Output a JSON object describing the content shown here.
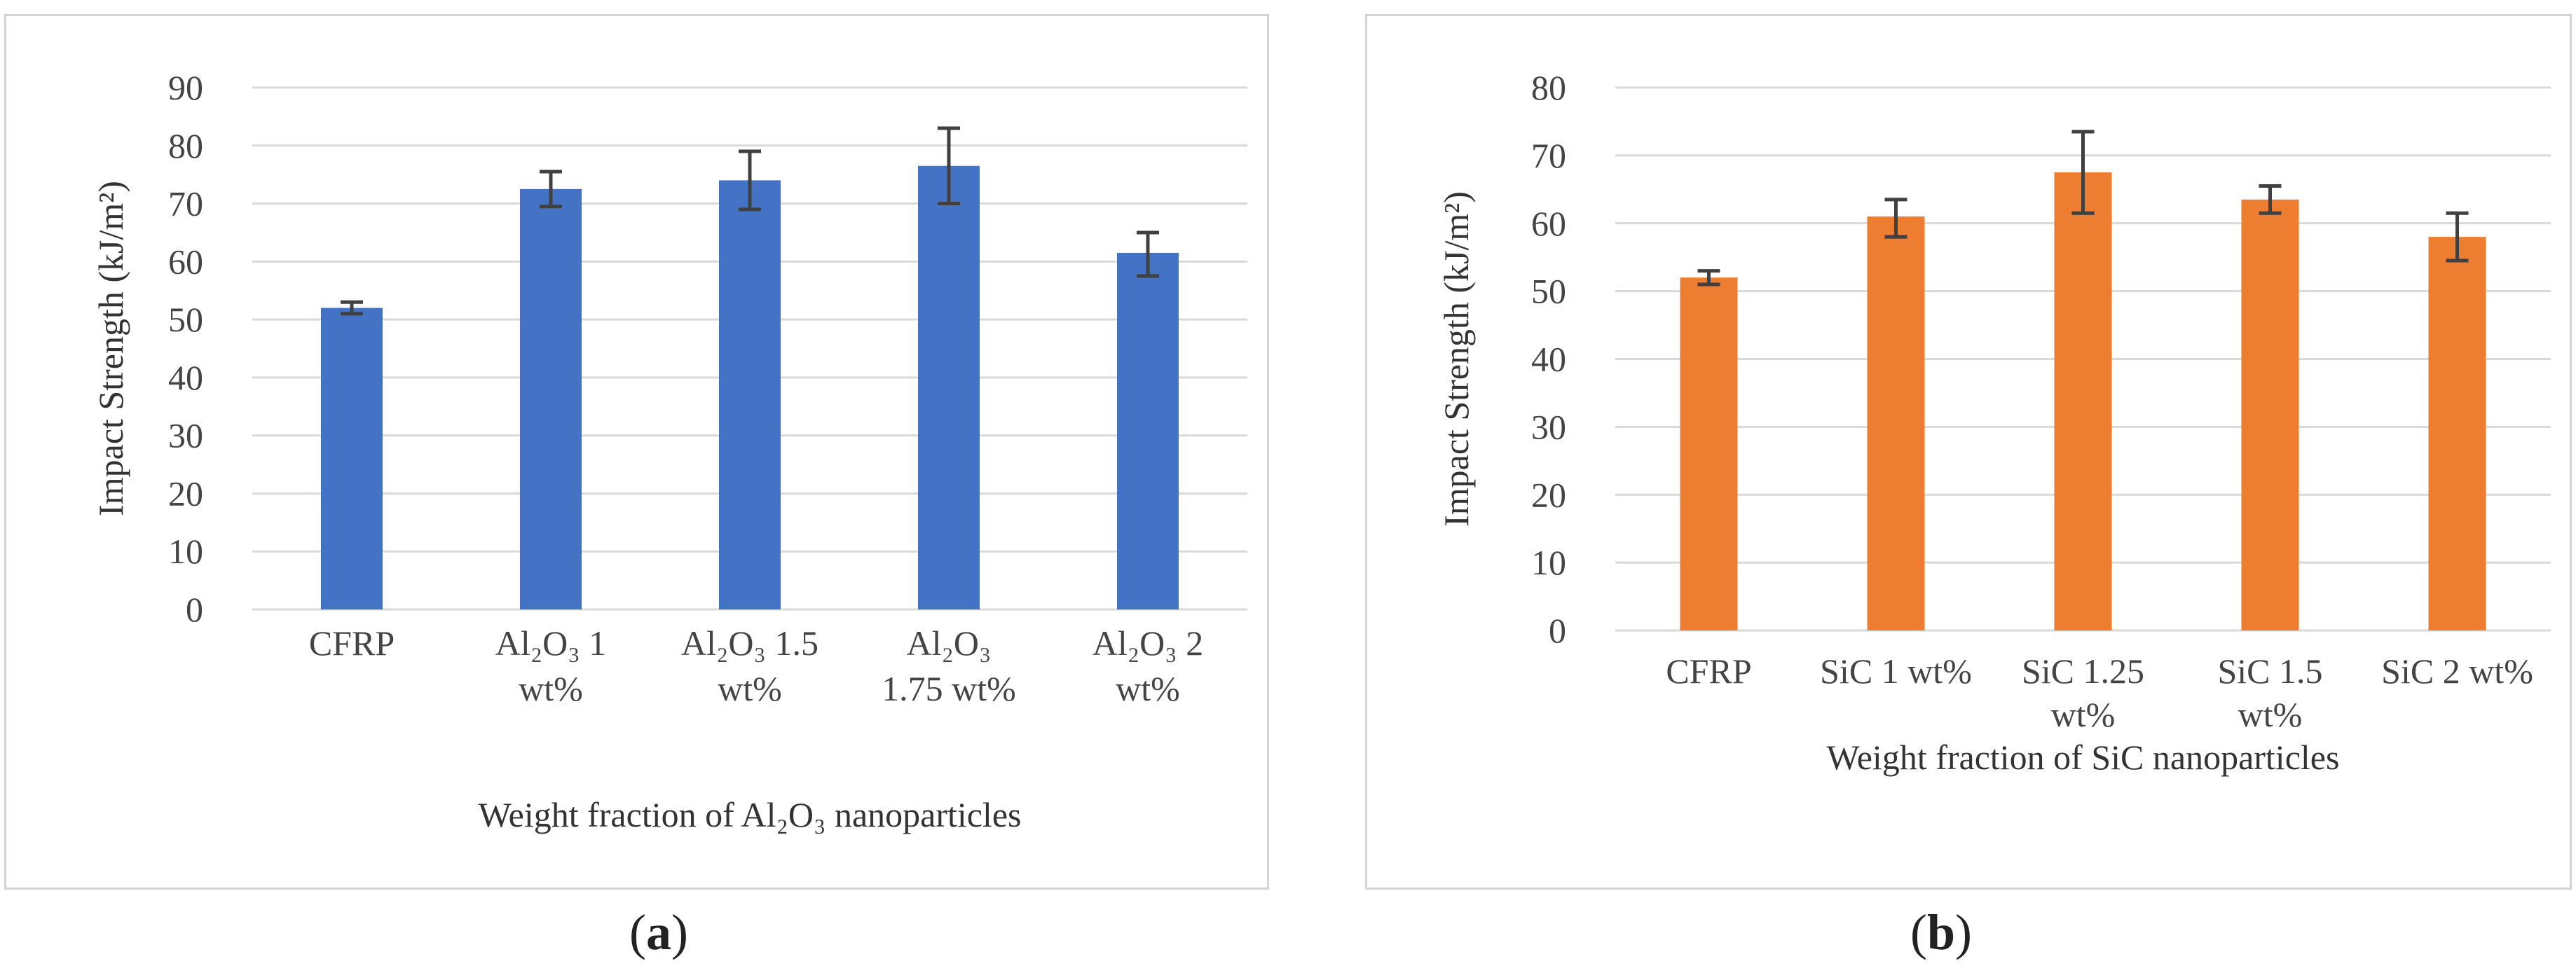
{
  "chart_data": [
    {
      "type": "bar",
      "panel_label": "a",
      "categories": [
        [
          "CFRP"
        ],
        [
          "Al₂O₃ 1",
          "wt%"
        ],
        [
          "Al₂O₃ 1.5",
          "wt%"
        ],
        [
          "Al₂O₃",
          "1.75 wt%"
        ],
        [
          "Al₂O₃ 2",
          "wt%"
        ]
      ],
      "values": [
        52,
        72.5,
        74,
        76.5,
        61.5
      ],
      "error_low": [
        51,
        69.5,
        69,
        70,
        57.5
      ],
      "error_high": [
        53,
        75.5,
        79,
        83,
        65
      ],
      "xlabel": "Weight fraction of  Al₂O₃ nanoparticles",
      "ylabel": "Impact Strength (kJ/m²)",
      "ylim": [
        0,
        90
      ],
      "yticks": [
        0,
        10,
        20,
        30,
        40,
        50,
        60,
        70,
        80,
        90
      ],
      "color": "#4472C4",
      "grid": true
    },
    {
      "type": "bar",
      "panel_label": "b",
      "categories": [
        [
          "CFRP"
        ],
        [
          "SiC 1 wt%"
        ],
        [
          "SiC 1.25",
          "wt%"
        ],
        [
          "SiC 1.5",
          "wt%"
        ],
        [
          "SiC 2 wt%"
        ]
      ],
      "values": [
        52,
        61,
        67.5,
        63.5,
        58
      ],
      "error_low": [
        51,
        58,
        61.5,
        61.5,
        54.5
      ],
      "error_high": [
        53,
        63.5,
        73.5,
        65.5,
        61.5
      ],
      "xlabel": "Weight fraction of  SiC nanoparticles",
      "ylabel": "Impact Strength (kJ/m²)",
      "ylim": [
        0,
        80
      ],
      "yticks": [
        0,
        10,
        20,
        30,
        40,
        50,
        60,
        70,
        80
      ],
      "color": "#ED7D31",
      "grid": true
    }
  ]
}
